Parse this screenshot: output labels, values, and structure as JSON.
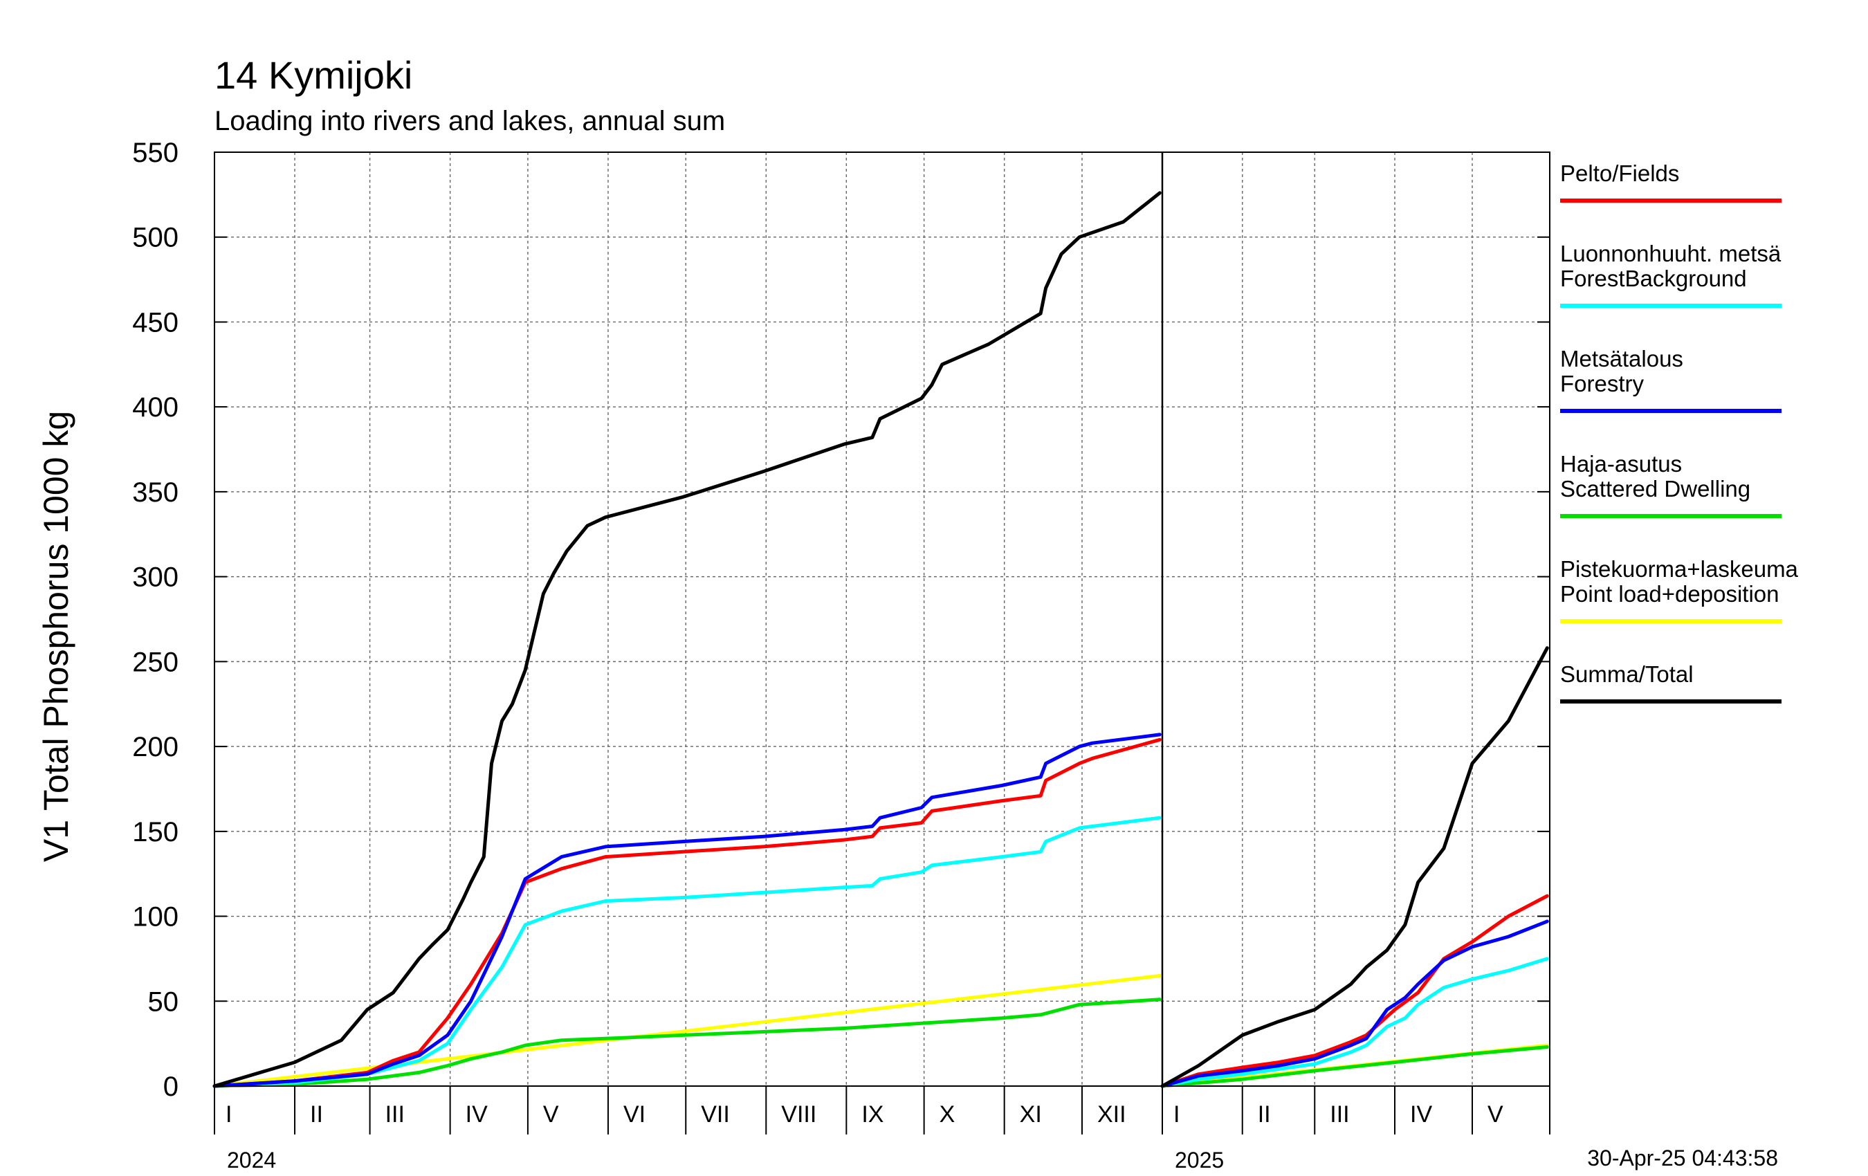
{
  "chart_data": {
    "type": "line",
    "title": "14 Kymijoki",
    "subtitle": "Loading into rivers and lakes, annual sum",
    "ylabel": "V1 Total Phosphorus 1000 kg",
    "ylim": [
      0,
      550
    ],
    "yticks": [
      0,
      50,
      100,
      150,
      200,
      250,
      300,
      350,
      400,
      450,
      500,
      550
    ],
    "grid": true,
    "legend_position": "right",
    "timestamp": "30-Apr-25 04:43:58",
    "panels": [
      {
        "year": "2024",
        "months": [
          "I",
          "II",
          "III",
          "IV",
          "V",
          "VI",
          "VII",
          "VIII",
          "IX",
          "X",
          "XI",
          "XII"
        ],
        "series": [
          {
            "key": "fields",
            "x": [
              1,
              32,
              60,
              70,
              80,
              91,
              100,
              112,
              121,
              135,
              152,
              182,
              213,
              244,
              255,
              258,
              274,
              278,
              305,
              320,
              322,
              335,
              340,
              366
            ],
            "y": [
              0,
              3,
              8,
              15,
              20,
              40,
              60,
              90,
              120,
              128,
              135,
              138,
              141,
              145,
              147,
              152,
              155,
              162,
              168,
              171,
              180,
              190,
              193,
              204
            ]
          },
          {
            "key": "forest_background",
            "x": [
              1,
              32,
              60,
              80,
              91,
              100,
              112,
              121,
              135,
              152,
              182,
              213,
              244,
              255,
              258,
              274,
              278,
              305,
              320,
              322,
              335,
              340,
              366
            ],
            "y": [
              0,
              2,
              7,
              15,
              25,
              45,
              70,
              95,
              103,
              109,
              111,
              114,
              117,
              118,
              122,
              126,
              130,
              135,
              138,
              144,
              152,
              153,
              158
            ]
          },
          {
            "key": "forestry",
            "x": [
              1,
              32,
              60,
              70,
              80,
              91,
              100,
              112,
              121,
              135,
              152,
              182,
              213,
              244,
              255,
              258,
              274,
              278,
              305,
              320,
              322,
              335,
              340,
              366
            ],
            "y": [
              0,
              3,
              7,
              13,
              18,
              30,
              50,
              88,
              122,
              135,
              141,
              144,
              147,
              151,
              153,
              158,
              164,
              170,
              177,
              182,
              190,
              200,
              202,
              207
            ]
          },
          {
            "key": "scattered_dwelling",
            "x": [
              1,
              32,
              60,
              80,
              91,
              100,
              112,
              121,
              135,
              152,
              182,
              213,
              244,
              274,
              305,
              320,
              335,
              366
            ],
            "y": [
              0,
              1,
              4,
              8,
              12,
              16,
              20,
              24,
              27,
              28,
              30,
              32,
              34,
              37,
              40,
              42,
              48,
              51
            ]
          },
          {
            "key": "point_load_deposition",
            "x": [
              1,
              366
            ],
            "y": [
              0,
              65
            ]
          },
          {
            "key": "total",
            "x": [
              1,
              32,
              50,
              60,
              70,
              80,
              85,
              91,
              97,
              100,
              105,
              108,
              112,
              116,
              121,
              128,
              132,
              137,
              145,
              152,
              182,
              213,
              244,
              255,
              258,
              274,
              278,
              282,
              300,
              320,
              322,
              328,
              335,
              352,
              366
            ],
            "y": [
              0,
              14,
              27,
              45,
              55,
              75,
              83,
              92,
              110,
              120,
              135,
              190,
              215,
              225,
              245,
              290,
              302,
              315,
              330,
              335,
              347,
              362,
              378,
              382,
              393,
              405,
              413,
              425,
              437,
              455,
              470,
              490,
              500,
              509,
              526
            ]
          }
        ]
      },
      {
        "year": "2025",
        "months": [
          "I",
          "II",
          "III",
          "IV",
          "V"
        ],
        "series": [
          {
            "key": "fields",
            "x": [
              1,
              15,
              32,
              46,
              60,
              74,
              80,
              91,
              100,
              110,
              121,
              135,
              150
            ],
            "y": [
              0,
              7,
              11,
              14,
              18,
              26,
              30,
              45,
              55,
              75,
              85,
              100,
              112
            ]
          },
          {
            "key": "forest_background",
            "x": [
              1,
              15,
              32,
              46,
              60,
              74,
              80,
              88,
              95,
              100,
              110,
              121,
              135,
              150
            ],
            "y": [
              0,
              4,
              7,
              10,
              13,
              20,
              24,
              35,
              40,
              48,
              58,
              63,
              68,
              75
            ]
          },
          {
            "key": "forestry",
            "x": [
              1,
              15,
              32,
              46,
              60,
              74,
              80,
              88,
              95,
              100,
              110,
              121,
              135,
              150
            ],
            "y": [
              0,
              6,
              9,
              12,
              16,
              24,
              28,
              45,
              52,
              60,
              74,
              82,
              88,
              97
            ]
          },
          {
            "key": "scattered_dwelling",
            "x": [
              1,
              32,
              60,
              91,
              121,
              150
            ],
            "y": [
              0,
              4,
              9,
              14,
              19,
              23
            ]
          },
          {
            "key": "point_load_deposition",
            "x": [
              1,
              150
            ],
            "y": [
              0,
              24
            ]
          },
          {
            "key": "total",
            "x": [
              1,
              15,
              32,
              46,
              60,
              74,
              80,
              88,
              95,
              100,
              110,
              121,
              135,
              150
            ],
            "y": [
              0,
              12,
              30,
              38,
              45,
              60,
              70,
              80,
              95,
              120,
              140,
              190,
              215,
              258
            ]
          }
        ]
      }
    ],
    "legend": [
      {
        "key": "fields",
        "lines": [
          "Pelto/Fields"
        ],
        "color": "#ff0000"
      },
      {
        "key": "forest_background",
        "lines": [
          "Luonnonhuuht. metsä",
          "ForestBackground"
        ],
        "color": "#00ffff"
      },
      {
        "key": "forestry",
        "lines": [
          "Metsätalous",
          "Forestry"
        ],
        "color": "#0000ff"
      },
      {
        "key": "scattered_dwelling",
        "lines": [
          "Haja-asutus",
          "Scattered Dwelling"
        ],
        "color": "#00e000"
      },
      {
        "key": "point_load_deposition",
        "lines": [
          "Pistekuorma+laskeuma",
          "Point load+deposition"
        ],
        "color": "#ffff00"
      },
      {
        "key": "total",
        "lines": [
          "Summa/Total"
        ],
        "color": "#000000"
      }
    ]
  }
}
